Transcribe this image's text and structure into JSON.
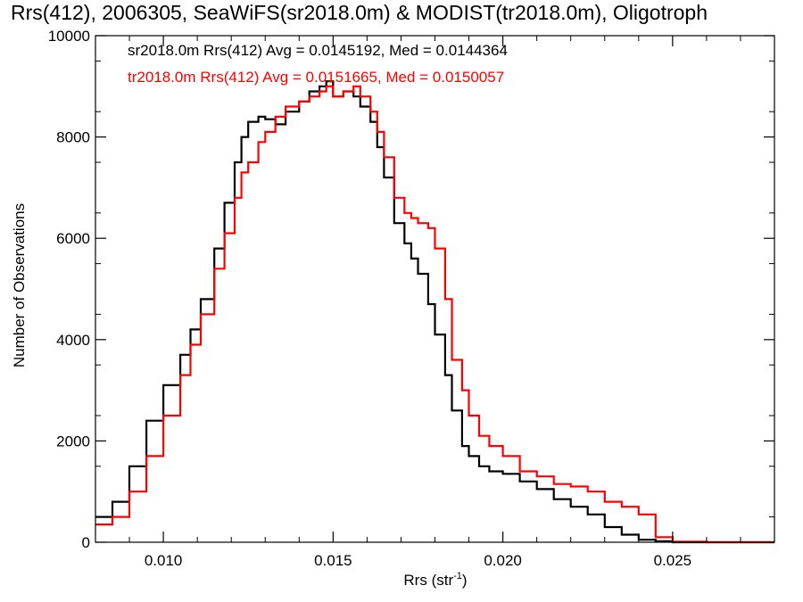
{
  "chart_data": {
    "type": "line",
    "title": "Rrs(412), 2006305, SeaWiFS(sr2018.0m) & MODIST(tr2018.0m), Oligotroph",
    "xlabel_main": "Rrs (str",
    "xlabel_sup": "-1",
    "xlabel_close": ")",
    "ylabel": "Number of Observations",
    "xlim": [
      0.008,
      0.028
    ],
    "ylim": [
      0,
      10000
    ],
    "xticks": [
      0.01,
      0.015,
      0.02,
      0.025
    ],
    "xtick_labels": [
      "0.010",
      "0.015",
      "0.020",
      "0.025"
    ],
    "yticks": [
      0,
      2000,
      4000,
      6000,
      8000,
      10000
    ],
    "ytick_labels": [
      "0",
      "2000",
      "4000",
      "6000",
      "8000",
      "10000"
    ],
    "series": [
      {
        "name": "sr2018.0m Rrs(412)",
        "legend_text": "sr2018.0m Rrs(412) Avg = 0.0145192, Med = 0.0144364",
        "color": "#000000",
        "x": [
          0.008,
          0.0085,
          0.009,
          0.0095,
          0.01,
          0.0105,
          0.0108,
          0.0111,
          0.0115,
          0.0118,
          0.0121,
          0.0123,
          0.0125,
          0.0128,
          0.013,
          0.0133,
          0.0136,
          0.014,
          0.0143,
          0.0146,
          0.0148,
          0.015,
          0.0153,
          0.0156,
          0.0158,
          0.0161,
          0.0163,
          0.0165,
          0.0168,
          0.0171,
          0.0173,
          0.0175,
          0.0178,
          0.018,
          0.0183,
          0.0185,
          0.0188,
          0.019,
          0.0193,
          0.0196,
          0.02,
          0.0205,
          0.021,
          0.0215,
          0.022,
          0.0225,
          0.023,
          0.0235,
          0.024,
          0.0245,
          0.025,
          0.026,
          0.027,
          0.028
        ],
        "y": [
          500,
          800,
          1500,
          2400,
          3100,
          3700,
          4200,
          4800,
          5800,
          6700,
          7500,
          8000,
          8300,
          8400,
          8350,
          8250,
          8500,
          8700,
          8900,
          9000,
          9100,
          8800,
          8900,
          8800,
          8600,
          8300,
          7800,
          7200,
          6300,
          5900,
          5600,
          5300,
          4700,
          4100,
          3300,
          2600,
          1900,
          1700,
          1500,
          1400,
          1350,
          1200,
          1050,
          850,
          700,
          550,
          300,
          150,
          50,
          20,
          0,
          0,
          0,
          0
        ]
      },
      {
        "name": "tr2018.0m Rrs(412)",
        "legend_text": "tr2018.0m Rrs(412) Avg = 0.0151665, Med = 0.0150057",
        "color": "#ff0000",
        "x": [
          0.008,
          0.0085,
          0.009,
          0.0095,
          0.01,
          0.0105,
          0.0108,
          0.0111,
          0.0115,
          0.0118,
          0.0121,
          0.0123,
          0.0125,
          0.0128,
          0.013,
          0.0133,
          0.0136,
          0.014,
          0.0143,
          0.0146,
          0.0148,
          0.015,
          0.0153,
          0.0156,
          0.0158,
          0.0161,
          0.0163,
          0.0165,
          0.0168,
          0.0171,
          0.0173,
          0.0175,
          0.0178,
          0.018,
          0.0183,
          0.0185,
          0.0188,
          0.019,
          0.0193,
          0.0196,
          0.02,
          0.0205,
          0.021,
          0.0215,
          0.022,
          0.0225,
          0.023,
          0.0235,
          0.024,
          0.0245,
          0.025,
          0.026,
          0.027,
          0.028
        ],
        "y": [
          350,
          500,
          1000,
          1700,
          2500,
          3300,
          3900,
          4500,
          5400,
          6100,
          6800,
          7300,
          7500,
          7900,
          8100,
          8400,
          8600,
          8700,
          8800,
          8900,
          9000,
          8800,
          8900,
          9000,
          8800,
          8500,
          8100,
          7600,
          6800,
          6500,
          6400,
          6300,
          6200,
          5800,
          4800,
          3600,
          3000,
          2500,
          2100,
          1900,
          1700,
          1400,
          1300,
          1150,
          1100,
          1000,
          800,
          700,
          550,
          100,
          10,
          0,
          0,
          0
        ]
      }
    ],
    "grid": false
  }
}
